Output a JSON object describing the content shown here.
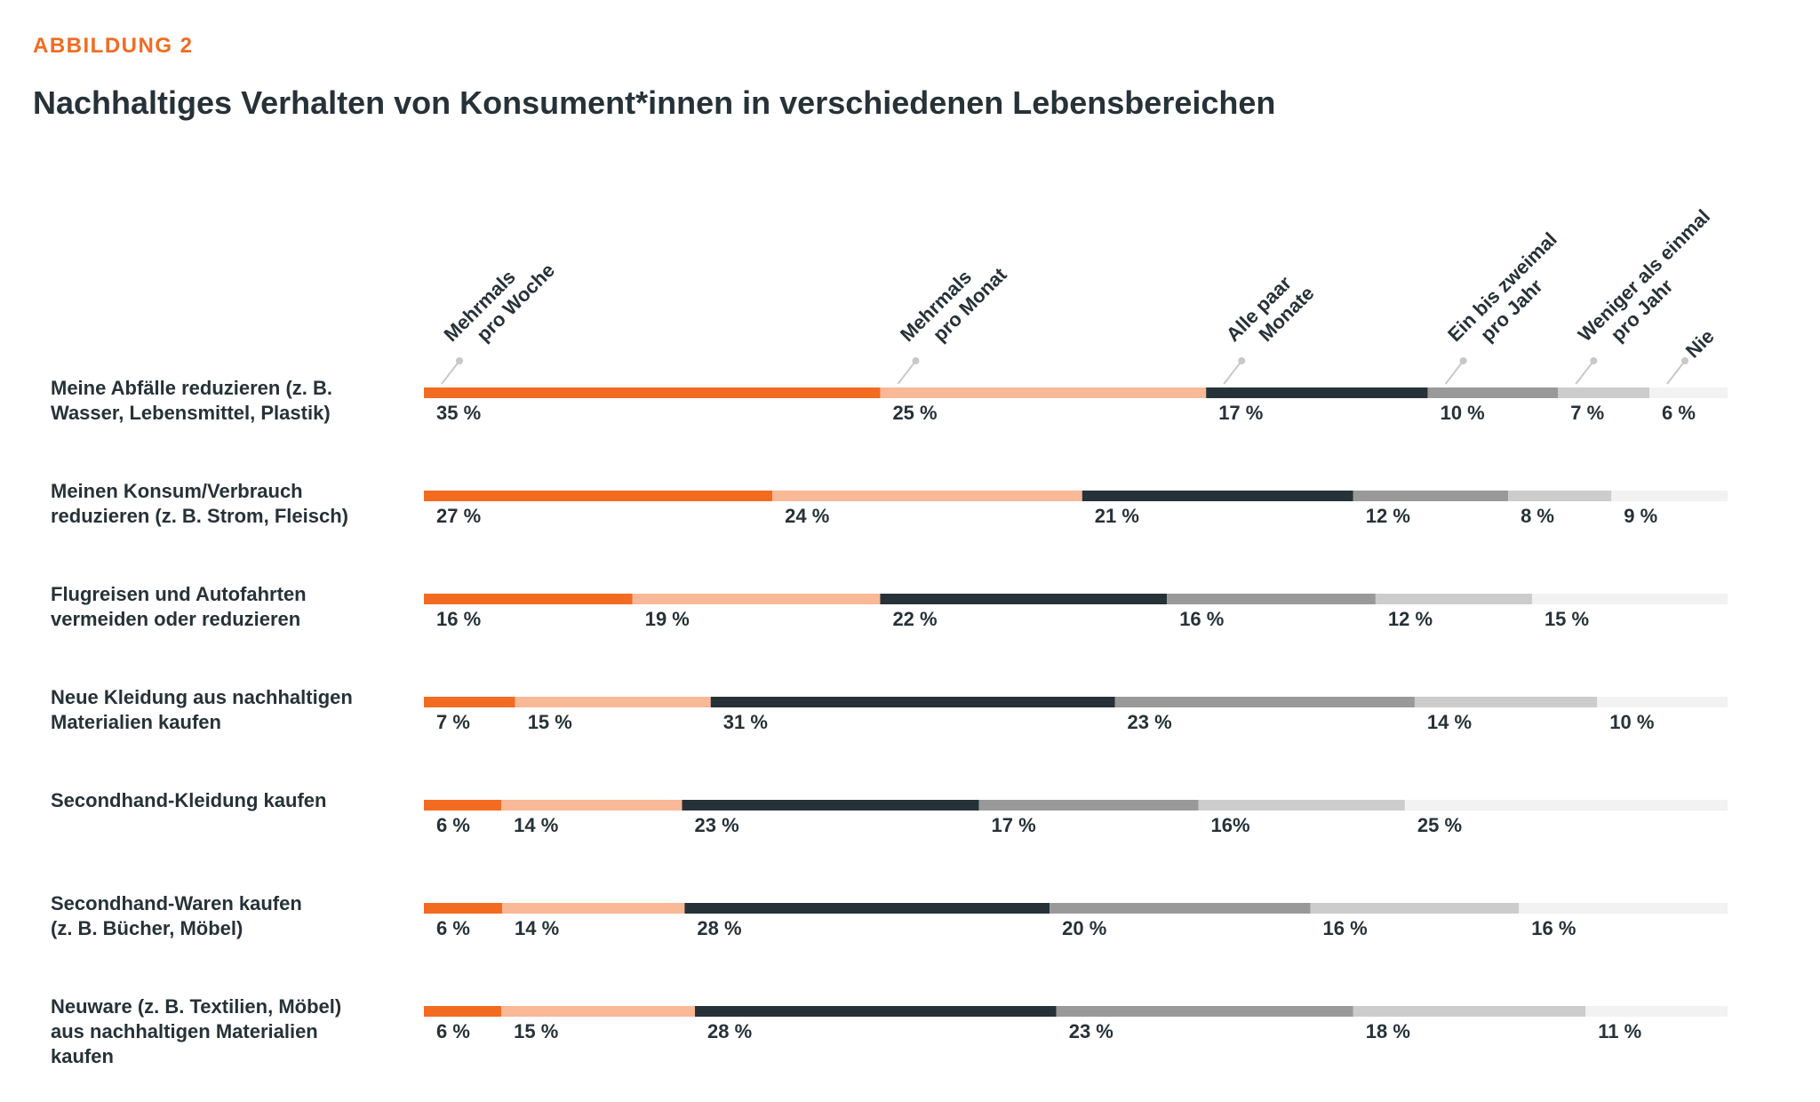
{
  "figure_label": "ABBILDUNG 2",
  "title": "Nachhaltiges Verhalten von Konsument*innen in verschiedenen Lebensbereichen",
  "colors": [
    "#f26b21",
    "#f9b896",
    "#263238",
    "#999999",
    "#cccccc",
    "#f2f2f2"
  ],
  "chart_data": {
    "type": "bar",
    "stacked": true,
    "orientation": "horizontal",
    "value_unit": "%",
    "title": "Nachhaltiges Verhalten von Konsument*innen in verschiedenen Lebensbereichen",
    "legend_placement": "top, rotated labels above first bar",
    "categories": [
      [
        "Meine Abfälle reduzieren (z. B.",
        "Wasser, Lebensmittel, Plastik)"
      ],
      [
        "Meinen Konsum/Verbrauch",
        "reduzieren (z. B. Strom, Fleisch)"
      ],
      [
        "Flugreisen und Autofahrten",
        "vermeiden oder reduzieren"
      ],
      [
        "Neue Kleidung aus nachhaltigen",
        "Materialien kaufen"
      ],
      [
        "Secondhand-Kleidung kaufen"
      ],
      [
        "Secondhand-Waren kaufen",
        "(z. B. Bücher, Möbel)"
      ],
      [
        "Neuware (z. B. Textilien, Möbel)",
        "aus nachhaltigen Materialien",
        "kaufen"
      ]
    ],
    "series": [
      {
        "name": [
          "Mehrmals",
          "pro Woche"
        ],
        "color": "#f26b21",
        "values": [
          35,
          27,
          16,
          7,
          6,
          6,
          6
        ]
      },
      {
        "name": [
          "Mehrmals",
          "pro Monat"
        ],
        "color": "#f9b896",
        "values": [
          25,
          24,
          19,
          15,
          14,
          14,
          15
        ]
      },
      {
        "name": [
          "Alle paar",
          "Monate"
        ],
        "color": "#263238",
        "values": [
          17,
          21,
          22,
          31,
          23,
          28,
          28
        ]
      },
      {
        "name": [
          "Ein bis zweimal",
          "pro Jahr"
        ],
        "color": "#999999",
        "values": [
          10,
          12,
          16,
          23,
          17,
          20,
          23
        ]
      },
      {
        "name": [
          "Weniger als einmal",
          "pro Jahr"
        ],
        "color": "#cccccc",
        "values": [
          7,
          8,
          12,
          14,
          16,
          16,
          18
        ]
      },
      {
        "name": [
          "Nie"
        ],
        "color": "#f2f2f2",
        "values": [
          6,
          9,
          15,
          10,
          25,
          16,
          11
        ]
      }
    ],
    "value_labels": [
      [
        "35 %",
        "25 %",
        "17 %",
        "10 %",
        "7 %",
        "6 %"
      ],
      [
        "27 %",
        "24 %",
        "21 %",
        "12 %",
        "8 %",
        "9 %"
      ],
      [
        "16 %",
        "19 %",
        "22 %",
        "16 %",
        "12 %",
        "15 %"
      ],
      [
        "7 %",
        "15 %",
        "31 %",
        "23 %",
        "14 %",
        "10 %"
      ],
      [
        "6 %",
        "14 %",
        "23 %",
        "17 %",
        "16%",
        "25 %"
      ],
      [
        "6 %",
        "14 %",
        "28 %",
        "20 %",
        "16 %",
        "16 %"
      ],
      [
        "6 %",
        "15 %",
        "28 %",
        "23 %",
        "18 %",
        "11 %"
      ]
    ]
  }
}
